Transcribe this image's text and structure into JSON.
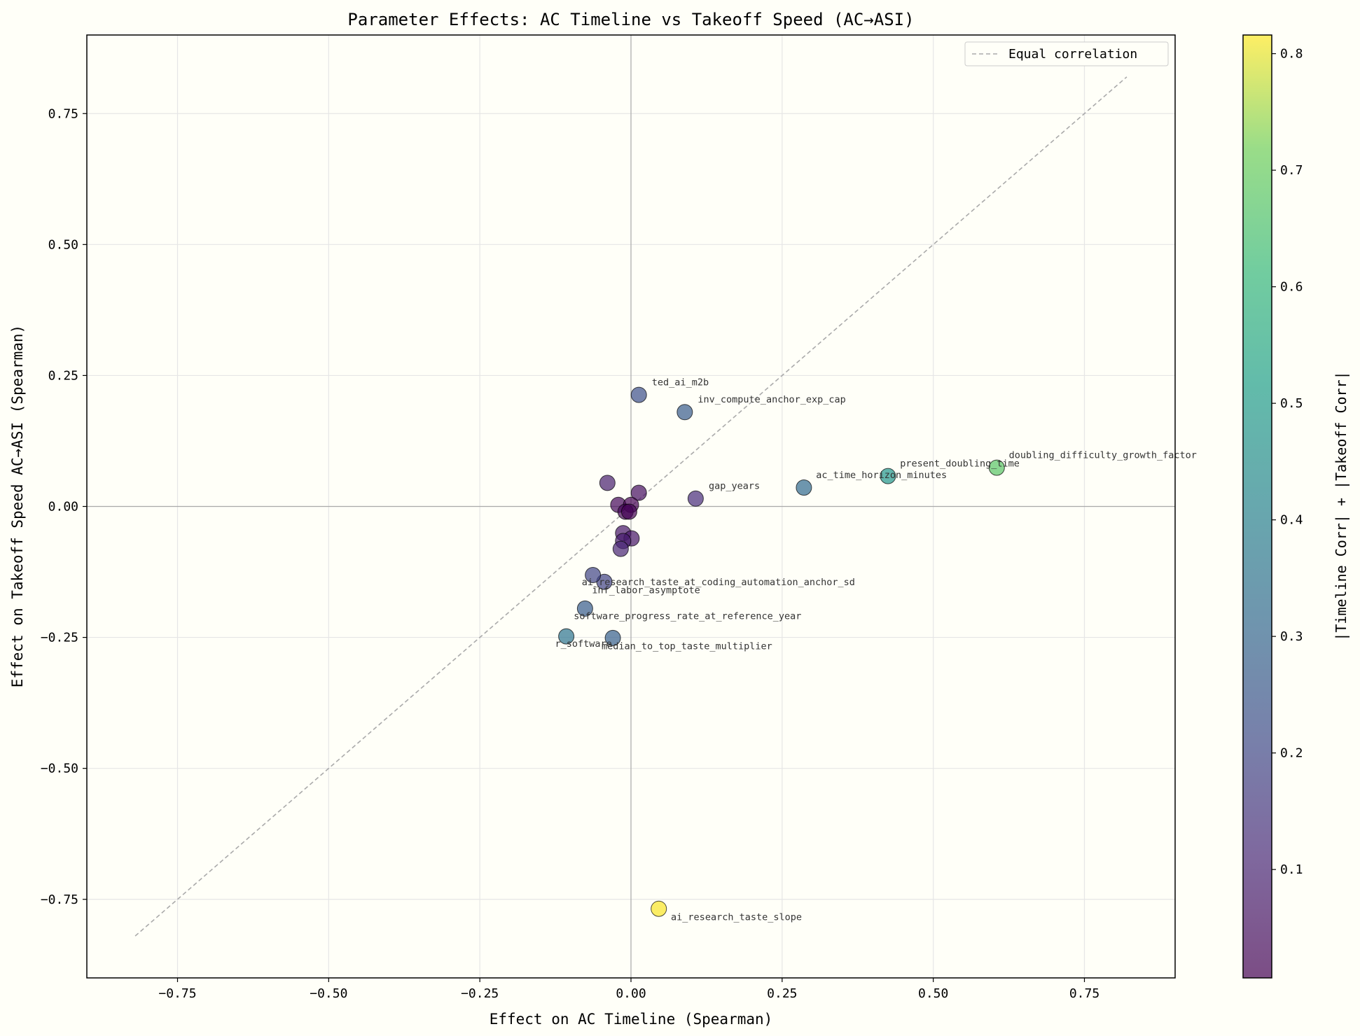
{
  "chart_data": {
    "type": "scatter",
    "title": "Parameter Effects: AC Timeline vs Takeoff Speed (AC→ASI)",
    "xlabel": "Effect on AC Timeline (Spearman)",
    "ylabel": "Effect on Takeoff Speed AC→ASI (Spearman)",
    "xlim": [
      -0.9,
      0.9
    ],
    "ylim": [
      -0.9,
      0.9
    ],
    "xticks": [
      -0.75,
      -0.5,
      -0.25,
      0.0,
      0.25,
      0.5,
      0.75
    ],
    "yticks": [
      -0.75,
      -0.5,
      -0.25,
      0.0,
      0.25,
      0.5,
      0.75
    ],
    "xtick_labels": [
      "−0.75",
      "−0.50",
      "−0.25",
      "0.00",
      "0.25",
      "0.50",
      "0.75"
    ],
    "ytick_labels": [
      "−0.75",
      "−0.50",
      "−0.25",
      "0.00",
      "0.25",
      "0.50",
      "0.75"
    ],
    "grid": true,
    "legend": {
      "placement": "top-right",
      "entries": [
        "Equal correlation"
      ]
    },
    "reference_line": {
      "name": "Equal correlation",
      "from": [
        -0.82,
        -0.82
      ],
      "to": [
        0.82,
        0.82
      ],
      "color": "#aaaaaa",
      "style": "dashed"
    },
    "colorbar": {
      "label": "|Timeline Corr| + |Takeoff Corr|",
      "colormap": "viridis",
      "range": [
        0.007,
        0.816
      ],
      "ticks": [
        0.1,
        0.2,
        0.3,
        0.4,
        0.5,
        0.6,
        0.7,
        0.8
      ],
      "tick_labels": [
        "0.1",
        "0.2",
        "0.3",
        "0.4",
        "0.5",
        "0.6",
        "0.7",
        "0.8"
      ]
    },
    "points": [
      {
        "label": "ted_ai_m2b",
        "x": 0.013,
        "y": 0.213
      },
      {
        "label": "inv_compute_anchor_exp_cap",
        "x": 0.089,
        "y": 0.18
      },
      {
        "label": "gap_years",
        "x": 0.107,
        "y": 0.015
      },
      {
        "label": "ac_time_horizon_minutes",
        "x": 0.286,
        "y": 0.036
      },
      {
        "label": "present_doubling_time",
        "x": 0.425,
        "y": 0.058
      },
      {
        "label": "doubling_difficulty_growth_factor",
        "x": 0.605,
        "y": 0.074
      },
      {
        "label": "ai_research_taste_slope",
        "x": 0.046,
        "y": -0.768
      },
      {
        "label": "ai_research_taste_at_coding_automation_anchor_sd",
        "x": -0.044,
        "y": -0.144
      },
      {
        "label": "inf_labor_asymptote",
        "x": -0.063,
        "y": -0.131
      },
      {
        "label": "software_progress_rate_at_reference_year",
        "x": -0.076,
        "y": -0.195
      },
      {
        "label": "r_software",
        "x": -0.107,
        "y": -0.248
      },
      {
        "label": "median_to_top_taste_multiplier",
        "x": -0.03,
        "y": -0.251
      },
      {
        "label": "",
        "x": -0.039,
        "y": 0.045
      },
      {
        "label": "",
        "x": 0.013,
        "y": 0.026
      },
      {
        "label": "",
        "x": -0.021,
        "y": 0.003
      },
      {
        "label": "",
        "x": 0.0,
        "y": 0.003
      },
      {
        "label": "",
        "x": -0.009,
        "y": -0.01
      },
      {
        "label": "",
        "x": -0.003,
        "y": -0.01
      },
      {
        "label": "",
        "x": -0.013,
        "y": -0.051
      },
      {
        "label": "",
        "x": 0.001,
        "y": -0.061
      },
      {
        "label": "",
        "x": -0.013,
        "y": -0.066
      },
      {
        "label": "",
        "x": -0.017,
        "y": -0.081
      }
    ]
  }
}
